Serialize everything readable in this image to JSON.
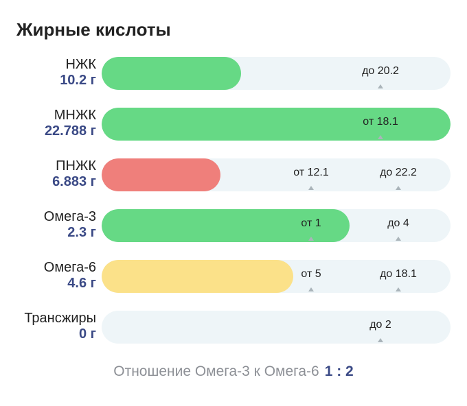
{
  "title": "Жирные кислоты",
  "colors": {
    "green": "#66d985",
    "red": "#ef7f7b",
    "yellow": "#fbe189",
    "track": "#eef5f8",
    "value_text": "#3b4a86"
  },
  "rows": [
    {
      "label": "НЖК",
      "amount": "10.2 г",
      "fill_fraction": 0.4,
      "color": "#66d985",
      "markers": [
        {
          "text": "до 20.2",
          "fraction": 0.8
        }
      ]
    },
    {
      "label": "МНЖК",
      "amount": "22.788 г",
      "fill_fraction": 1.0,
      "color": "#66d985",
      "markers": [
        {
          "text": "от 18.1",
          "fraction": 0.8
        }
      ]
    },
    {
      "label": "ПНЖК",
      "amount": "6.883 г",
      "fill_fraction": 0.34,
      "color": "#ef7f7b",
      "markers": [
        {
          "text": "от 12.1",
          "fraction": 0.6
        },
        {
          "text": "до 22.2",
          "fraction": 0.85
        }
      ]
    },
    {
      "label": "Омега-3",
      "amount": "2.3 г",
      "fill_fraction": 0.71,
      "color": "#66d985",
      "markers": [
        {
          "text": "от 1",
          "fraction": 0.6
        },
        {
          "text": "до 4",
          "fraction": 0.85
        }
      ]
    },
    {
      "label": "Омега-6",
      "amount": "4.6 г",
      "fill_fraction": 0.55,
      "color": "#fbe189",
      "markers": [
        {
          "text": "от 5",
          "fraction": 0.6
        },
        {
          "text": "до 18.1",
          "fraction": 0.85
        }
      ]
    },
    {
      "label": "Трансжиры",
      "amount": "0 г",
      "fill_fraction": 0.0,
      "color": "#66d985",
      "markers": [
        {
          "text": "до 2",
          "fraction": 0.8
        }
      ]
    }
  ],
  "ratio": {
    "label": "Отношение Омега-3 к Омега-6",
    "value": "1 : 2"
  }
}
